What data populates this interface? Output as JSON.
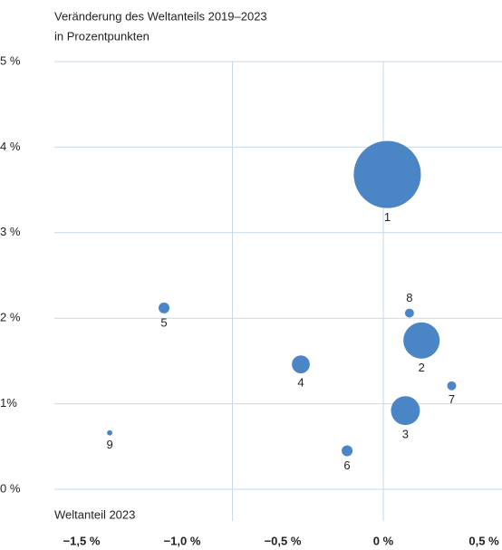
{
  "chart_data": {
    "type": "bubble",
    "title_lines": [
      "Veränderung des Weltanteils 2019–2023",
      "in Prozentpunkten"
    ],
    "x_label": "Weltanteil 2023",
    "color": "#4a86c6",
    "grid_color": "#c6d8ea",
    "labels": [
      "1",
      "2",
      "3",
      "4",
      "5",
      "6",
      "7",
      "8",
      "9"
    ],
    "x": [
      0.02,
      0.19,
      0.11,
      -0.41,
      -1.09,
      -0.18,
      0.34,
      0.13,
      -1.36
    ],
    "values": [
      3.68,
      1.74,
      0.92,
      1.46,
      2.12,
      0.45,
      1.21,
      2.06,
      0.66
    ],
    "sizes": [
      14,
      4.1,
      2.6,
      1.0,
      0.37,
      0.37,
      0.25,
      0.25,
      0.09
    ],
    "label_positions": [
      "below",
      "below",
      "below",
      "below",
      "below",
      "below",
      "below",
      "above",
      "below"
    ],
    "xlim": [
      -1.635,
      0.59
    ],
    "ylim": [
      0,
      5
    ],
    "xticks": [
      {
        "value": -1.5,
        "label": "−1,5 %"
      },
      {
        "value": -1.0,
        "label": "−1,0 %"
      },
      {
        "value": -0.5,
        "label": "−0,5 %"
      },
      {
        "value": 0,
        "label": "0 %"
      },
      {
        "value": 0.5,
        "label": "0,5 %"
      }
    ],
    "yticks": [
      {
        "value": 0,
        "label": "0 %"
      },
      {
        "value": 1,
        "label": "1%"
      },
      {
        "value": 2,
        "label": "2 %"
      },
      {
        "value": 3,
        "label": "3 %"
      },
      {
        "value": 4,
        "label": "4 %"
      },
      {
        "value": 5,
        "label": "5 %"
      }
    ],
    "x_gridlines": [
      -0.75,
      0
    ],
    "grid": true
  }
}
